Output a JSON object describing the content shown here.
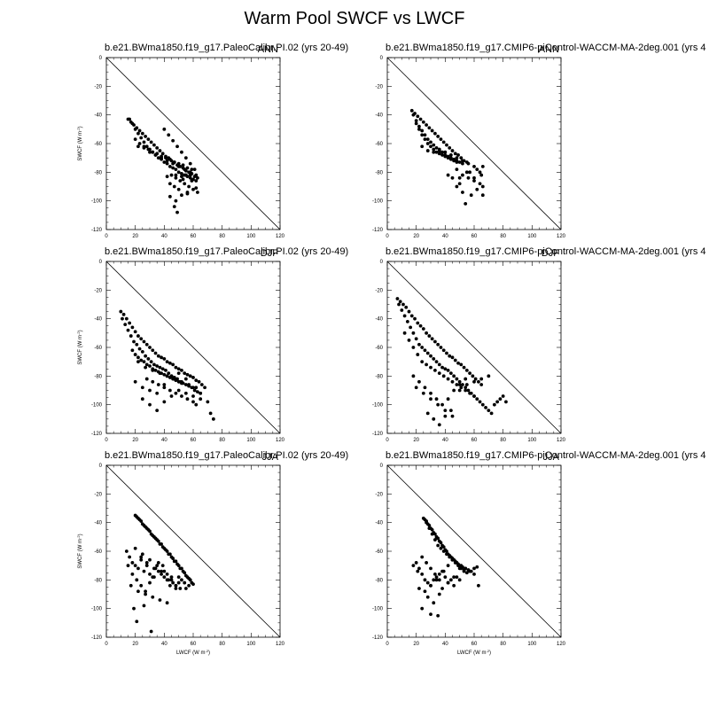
{
  "title": "Warm Pool SWCF vs LWCF",
  "axis_text": {
    "ylabel": "SWCF (W m",
    "xlabel": "LWCF (W m",
    "unit_exp": "-2",
    "unit_close": ")"
  },
  "chart_data": [
    {
      "type": "scatter",
      "title": "b.e21.BWma1850.f19_g17.PaleoCalibr.PI.02 (yrs 20-49)",
      "season": "ANN",
      "xlabel": "",
      "ylabel": "SWCF (W m-2)",
      "xlim": [
        0,
        120
      ],
      "ylim": [
        -120,
        0
      ],
      "xticks": [
        0,
        20,
        40,
        60,
        80,
        100,
        120
      ],
      "yticks": [
        0,
        -20,
        -40,
        -60,
        -80,
        -100,
        -120
      ],
      "reference_line": {
        "x": [
          0,
          120
        ],
        "y": [
          0,
          -120
        ]
      },
      "x": [
        15,
        17,
        19,
        21,
        23,
        25,
        27,
        29,
        31,
        33,
        35,
        37,
        39,
        41,
        43,
        45,
        47,
        49,
        51,
        53,
        55,
        57,
        59,
        61,
        63,
        16,
        18,
        20,
        22,
        24,
        26,
        28,
        30,
        32,
        34,
        36,
        38,
        40,
        42,
        44,
        46,
        48,
        50,
        52,
        54,
        56,
        58,
        60,
        62,
        20,
        23,
        26,
        29,
        32,
        35,
        38,
        41,
        44,
        47,
        50,
        53,
        56,
        59,
        22,
        26,
        30,
        34,
        38,
        42,
        46,
        50,
        54,
        58,
        62,
        40,
        43,
        46,
        49,
        52,
        55,
        58,
        61,
        45,
        48,
        51,
        54,
        57,
        60,
        63,
        44,
        47,
        50,
        53,
        56,
        59,
        62,
        42,
        48,
        52,
        55,
        58,
        44,
        48,
        52,
        56,
        47,
        49
      ],
      "y": [
        -43,
        -45,
        -47,
        -49,
        -51,
        -53,
        -55,
        -57,
        -59,
        -61,
        -63,
        -65,
        -67,
        -69,
        -70,
        -72,
        -73,
        -75,
        -76,
        -77,
        -79,
        -80,
        -81,
        -83,
        -84,
        -43,
        -46,
        -50,
        -53,
        -56,
        -59,
        -62,
        -64,
        -66,
        -68,
        -70,
        -71,
        -73,
        -74,
        -76,
        -77,
        -78,
        -80,
        -81,
        -82,
        -83,
        -84,
        -85,
        -86,
        -57,
        -60,
        -62,
        -64,
        -66,
        -67,
        -69,
        -70,
        -71,
        -73,
        -74,
        -75,
        -77,
        -78,
        -62,
        -63,
        -66,
        -68,
        -70,
        -72,
        -74,
        -76,
        -78,
        -80,
        -82,
        -50,
        -54,
        -58,
        -62,
        -66,
        -70,
        -74,
        -78,
        -82,
        -84,
        -86,
        -88,
        -90,
        -92,
        -94,
        -88,
        -90,
        -92,
        -85,
        -95,
        -86,
        -91,
        -83,
        -82,
        -83,
        -82,
        -82,
        -97,
        -100,
        -96,
        -94,
        -104,
        -108
      ]
    },
    {
      "type": "scatter",
      "title": "b.e21.BWma1850.f19_g17.CMIP6-piControl-WACCM-MA-2deg.001 (yrs 4",
      "season": "ANN",
      "xlabel": "",
      "ylabel": "",
      "xlim": [
        0,
        120
      ],
      "ylim": [
        -120,
        0
      ],
      "xticks": [
        0,
        20,
        40,
        60,
        80,
        100,
        120
      ],
      "yticks": [
        0,
        -20,
        -40,
        -60,
        -80,
        -100,
        -120
      ],
      "reference_line": {
        "x": [
          0,
          120
        ],
        "y": [
          0,
          -120
        ]
      },
      "x": [
        17,
        19,
        21,
        23,
        25,
        27,
        29,
        31,
        33,
        35,
        37,
        39,
        41,
        43,
        45,
        47,
        49,
        51,
        53,
        55,
        18,
        20,
        22,
        24,
        26,
        28,
        30,
        32,
        34,
        36,
        38,
        40,
        42,
        44,
        46,
        48,
        50,
        52,
        20,
        22,
        24,
        26,
        28,
        30,
        32,
        34,
        36,
        38,
        40,
        42,
        44,
        46,
        48,
        24,
        28,
        32,
        36,
        40,
        44,
        48,
        52,
        56,
        60,
        64,
        48,
        52,
        56,
        60,
        64,
        66,
        45,
        50,
        55,
        60,
        65,
        52,
        58,
        62,
        66,
        54,
        48,
        57,
        62,
        66,
        42,
        50
      ],
      "y": [
        -37,
        -39,
        -41,
        -43,
        -45,
        -47,
        -49,
        -51,
        -53,
        -55,
        -57,
        -59,
        -61,
        -63,
        -65,
        -67,
        -68,
        -70,
        -72,
        -73,
        -40,
        -44,
        -48,
        -51,
        -54,
        -57,
        -59,
        -61,
        -63,
        -65,
        -66,
        -68,
        -69,
        -70,
        -71,
        -72,
        -73,
        -74,
        -46,
        -50,
        -54,
        -57,
        -60,
        -62,
        -64,
        -66,
        -67,
        -68,
        -69,
        -70,
        -71,
        -72,
        -73,
        -62,
        -65,
        -66,
        -64,
        -66,
        -68,
        -70,
        -72,
        -74,
        -76,
        -80,
        -78,
        -82,
        -84,
        -86,
        -88,
        -90,
        -84,
        -88,
        -80,
        -84,
        -82,
        -94,
        -96,
        -92,
        -96,
        -102,
        -90,
        -80,
        -78,
        -76,
        -82,
        -84
      ]
    },
    {
      "type": "scatter",
      "title": "b.e21.BWma1850.f19_g17.PaleoCalibr.PI.02 (yrs 20-49)",
      "season": "DJF",
      "xlabel": "",
      "ylabel": "SWCF (W m-2)",
      "xlim": [
        0,
        120
      ],
      "ylim": [
        -120,
        0
      ],
      "xticks": [
        0,
        20,
        40,
        60,
        80,
        100,
        120
      ],
      "yticks": [
        0,
        -20,
        -40,
        -60,
        -80,
        -100,
        -120
      ],
      "reference_line": {
        "x": [
          0,
          120
        ],
        "y": [
          0,
          -120
        ]
      },
      "x": [
        10,
        12,
        14,
        16,
        18,
        20,
        22,
        24,
        26,
        28,
        30,
        32,
        34,
        36,
        38,
        40,
        42,
        44,
        46,
        48,
        50,
        52,
        54,
        56,
        58,
        60,
        62,
        64,
        66,
        68,
        11,
        13,
        15,
        17,
        19,
        21,
        23,
        25,
        27,
        29,
        31,
        33,
        35,
        37,
        39,
        41,
        43,
        45,
        47,
        49,
        51,
        53,
        55,
        57,
        59,
        61,
        63,
        65,
        18,
        20,
        22,
        24,
        26,
        28,
        30,
        32,
        34,
        36,
        38,
        40,
        42,
        44,
        46,
        48,
        50,
        52,
        20,
        25,
        30,
        35,
        40,
        45,
        50,
        55,
        60,
        65,
        22,
        27,
        32,
        37,
        42,
        47,
        52,
        57,
        62,
        25,
        30,
        35,
        40,
        45,
        50,
        55,
        60,
        65,
        70,
        72,
        74,
        28,
        32,
        36,
        40,
        44,
        48,
        52,
        56,
        60,
        62
      ],
      "y": [
        -35,
        -37,
        -40,
        -43,
        -46,
        -49,
        -52,
        -54,
        -56,
        -58,
        -60,
        -62,
        -64,
        -66,
        -67,
        -68,
        -70,
        -71,
        -72,
        -74,
        -75,
        -76,
        -78,
        -79,
        -80,
        -81,
        -83,
        -84,
        -86,
        -88,
        -40,
        -44,
        -48,
        -52,
        -56,
        -58,
        -61,
        -63,
        -66,
        -68,
        -70,
        -72,
        -73,
        -74,
        -75,
        -76,
        -78,
        -80,
        -81,
        -82,
        -84,
        -85,
        -86,
        -87,
        -88,
        -90,
        -91,
        -92,
        -62,
        -65,
        -67,
        -69,
        -70,
        -72,
        -73,
        -75,
        -76,
        -77,
        -78,
        -79,
        -80,
        -81,
        -82,
        -83,
        -84,
        -85,
        -84,
        -88,
        -90,
        -92,
        -86,
        -80,
        -78,
        -82,
        -88,
        -92,
        -70,
        -74,
        -76,
        -78,
        -80,
        -82,
        -84,
        -86,
        -88,
        -96,
        -100,
        -104,
        -98,
        -94,
        -90,
        -92,
        -94,
        -96,
        -98,
        -106,
        -110,
        -82,
        -84,
        -86,
        -88,
        -90,
        -92,
        -94,
        -96,
        -98,
        -100
      ]
    },
    {
      "type": "scatter",
      "title": "b.e21.BWma1850.f19_g17.CMIP6-piControl-WACCM-MA-2deg.001 (yrs 4",
      "season": "DJF",
      "xlabel": "",
      "ylabel": "",
      "xlim": [
        0,
        120
      ],
      "ylim": [
        -120,
        0
      ],
      "xticks": [
        0,
        20,
        40,
        60,
        80,
        100,
        120
      ],
      "yticks": [
        0,
        -20,
        -40,
        -60,
        -80,
        -100,
        -120
      ],
      "reference_line": {
        "x": [
          0,
          120
        ],
        "y": [
          0,
          -120
        ]
      },
      "x": [
        7,
        9,
        11,
        13,
        15,
        17,
        19,
        21,
        23,
        25,
        27,
        29,
        31,
        33,
        35,
        37,
        39,
        41,
        43,
        45,
        47,
        49,
        51,
        53,
        55,
        57,
        59,
        61,
        63,
        65,
        8,
        10,
        12,
        14,
        16,
        18,
        20,
        22,
        24,
        26,
        28,
        30,
        32,
        34,
        36,
        38,
        40,
        42,
        44,
        46,
        48,
        50,
        52,
        54,
        56,
        58,
        60,
        62,
        64,
        66,
        68,
        70,
        72,
        74,
        76,
        78,
        80,
        82,
        12,
        15,
        18,
        21,
        24,
        27,
        30,
        33,
        36,
        39,
        42,
        45,
        48,
        51,
        54,
        57,
        60,
        18,
        22,
        26,
        30,
        34,
        38,
        42,
        46,
        50,
        54,
        20,
        25,
        30,
        35,
        40,
        45,
        50,
        55,
        60,
        65,
        70,
        28,
        32,
        36,
        40,
        44
      ],
      "y": [
        -26,
        -28,
        -30,
        -32,
        -35,
        -38,
        -40,
        -43,
        -45,
        -47,
        -50,
        -52,
        -54,
        -56,
        -58,
        -60,
        -62,
        -64,
        -66,
        -67,
        -69,
        -71,
        -72,
        -74,
        -76,
        -78,
        -80,
        -82,
        -84,
        -86,
        -30,
        -34,
        -38,
        -42,
        -46,
        -50,
        -54,
        -58,
        -60,
        -62,
        -64,
        -66,
        -68,
        -70,
        -72,
        -74,
        -75,
        -76,
        -78,
        -80,
        -82,
        -84,
        -86,
        -88,
        -90,
        -92,
        -94,
        -96,
        -98,
        -100,
        -102,
        -104,
        -106,
        -100,
        -98,
        -96,
        -94,
        -98,
        -50,
        -55,
        -60,
        -65,
        -70,
        -72,
        -74,
        -76,
        -78,
        -80,
        -82,
        -84,
        -86,
        -88,
        -90,
        -92,
        -94,
        -80,
        -84,
        -88,
        -92,
        -96,
        -100,
        -96,
        -90,
        -86,
        -82,
        -88,
        -92,
        -96,
        -100,
        -104,
        -108,
        -90,
        -86,
        -84,
        -82,
        -80,
        -106,
        -110,
        -114,
        -108,
        -104
      ]
    },
    {
      "type": "scatter",
      "title": "b.e21.BWma1850.f19_g17.PaleoCalibr.PI.02 (yrs 20-49)",
      "season": "JJA",
      "xlabel": "LWCF (W m-2)",
      "ylabel": "SWCF (W m-2)",
      "xlim": [
        0,
        120
      ],
      "ylim": [
        -120,
        0
      ],
      "xticks": [
        0,
        20,
        40,
        60,
        80,
        100,
        120
      ],
      "yticks": [
        0,
        -20,
        -40,
        -60,
        -80,
        -100,
        -120
      ],
      "reference_line": {
        "x": [
          0,
          120
        ],
        "y": [
          0,
          -120
        ]
      },
      "x": [
        20,
        22,
        24,
        26,
        28,
        30,
        32,
        34,
        36,
        38,
        40,
        42,
        44,
        46,
        48,
        50,
        52,
        54,
        56,
        58,
        60,
        21,
        23,
        25,
        27,
        29,
        31,
        33,
        35,
        37,
        39,
        41,
        43,
        45,
        47,
        49,
        51,
        53,
        55,
        57,
        59,
        14,
        16,
        18,
        20,
        22,
        24,
        26,
        28,
        30,
        32,
        34,
        36,
        38,
        40,
        42,
        44,
        46,
        48,
        50,
        52,
        15,
        18,
        21,
        24,
        27,
        30,
        33,
        36,
        39,
        42,
        45,
        48,
        51,
        54,
        57,
        20,
        25,
        30,
        35,
        40,
        45,
        50,
        55,
        17,
        22,
        27,
        32,
        37,
        42,
        19,
        21,
        26,
        31,
        24,
        28,
        33,
        38,
        43,
        48
      ],
      "y": [
        -35,
        -37,
        -39,
        -42,
        -44,
        -46,
        -49,
        -51,
        -53,
        -55,
        -58,
        -60,
        -62,
        -65,
        -67,
        -70,
        -72,
        -75,
        -78,
        -80,
        -83,
        -36,
        -38,
        -41,
        -43,
        -45,
        -48,
        -50,
        -52,
        -55,
        -57,
        -59,
        -62,
        -64,
        -67,
        -69,
        -72,
        -74,
        -77,
        -79,
        -82,
        -60,
        -64,
        -68,
        -70,
        -72,
        -66,
        -74,
        -70,
        -76,
        -78,
        -72,
        -68,
        -74,
        -78,
        -80,
        -84,
        -82,
        -86,
        -78,
        -80,
        -70,
        -76,
        -80,
        -84,
        -88,
        -82,
        -78,
        -74,
        -70,
        -76,
        -80,
        -84,
        -86,
        -82,
        -84,
        -58,
        -62,
        -66,
        -70,
        -74,
        -78,
        -82,
        -86,
        -84,
        -88,
        -90,
        -92,
        -94,
        -96,
        -100,
        -109,
        -98,
        -116,
        -64,
        -68,
        -72,
        -76,
        -80,
        -84
      ]
    },
    {
      "type": "scatter",
      "title": "b.e21.BWma1850.f19_g17.CMIP6-piControl-WACCM-MA-2deg.001 (yrs 4",
      "season": "JJA",
      "xlabel": "LWCF (W m-2)",
      "ylabel": "",
      "xlim": [
        0,
        120
      ],
      "ylim": [
        -120,
        0
      ],
      "xticks": [
        0,
        20,
        40,
        60,
        80,
        100,
        120
      ],
      "yticks": [
        0,
        -20,
        -40,
        -60,
        -80,
        -100,
        -120
      ],
      "reference_line": {
        "x": [
          0,
          120
        ],
        "y": [
          0,
          -120
        ]
      },
      "x": [
        25,
        27,
        29,
        31,
        33,
        35,
        37,
        39,
        41,
        43,
        45,
        47,
        49,
        51,
        53,
        55,
        26,
        28,
        30,
        32,
        34,
        36,
        38,
        40,
        42,
        44,
        46,
        48,
        50,
        52,
        54,
        56,
        58,
        60,
        62,
        27,
        29,
        31,
        33,
        35,
        37,
        39,
        41,
        43,
        45,
        47,
        49,
        51,
        53,
        20,
        22,
        24,
        26,
        28,
        30,
        32,
        34,
        36,
        38,
        40,
        42,
        44,
        46,
        48,
        50,
        18,
        21,
        24,
        27,
        30,
        33,
        36,
        39,
        42,
        45,
        48,
        51,
        54,
        57,
        60,
        63,
        22,
        26,
        30,
        34,
        38,
        42,
        46,
        50,
        28,
        32,
        36,
        24,
        30,
        35
      ],
      "y": [
        -37,
        -39,
        -42,
        -45,
        -48,
        -51,
        -54,
        -57,
        -60,
        -63,
        -65,
        -67,
        -69,
        -71,
        -73,
        -75,
        -38,
        -41,
        -44,
        -47,
        -50,
        -53,
        -56,
        -59,
        -62,
        -64,
        -66,
        -68,
        -70,
        -71,
        -72,
        -73,
        -74,
        -72,
        -71,
        -40,
        -44,
        -48,
        -52,
        -56,
        -58,
        -60,
        -62,
        -64,
        -66,
        -68,
        -70,
        -72,
        -74,
        -68,
        -72,
        -76,
        -80,
        -82,
        -84,
        -80,
        -78,
        -76,
        -74,
        -78,
        -82,
        -80,
        -84,
        -78,
        -72,
        -70,
        -74,
        -64,
        -68,
        -72,
        -76,
        -80,
        -74,
        -70,
        -66,
        -68,
        -70,
        -72,
        -74,
        -76,
        -84,
        -86,
        -88,
        -84,
        -80,
        -86,
        -82,
        -78,
        -80,
        -92,
        -96,
        -90,
        -100,
        -104,
        -105
      ]
    }
  ]
}
